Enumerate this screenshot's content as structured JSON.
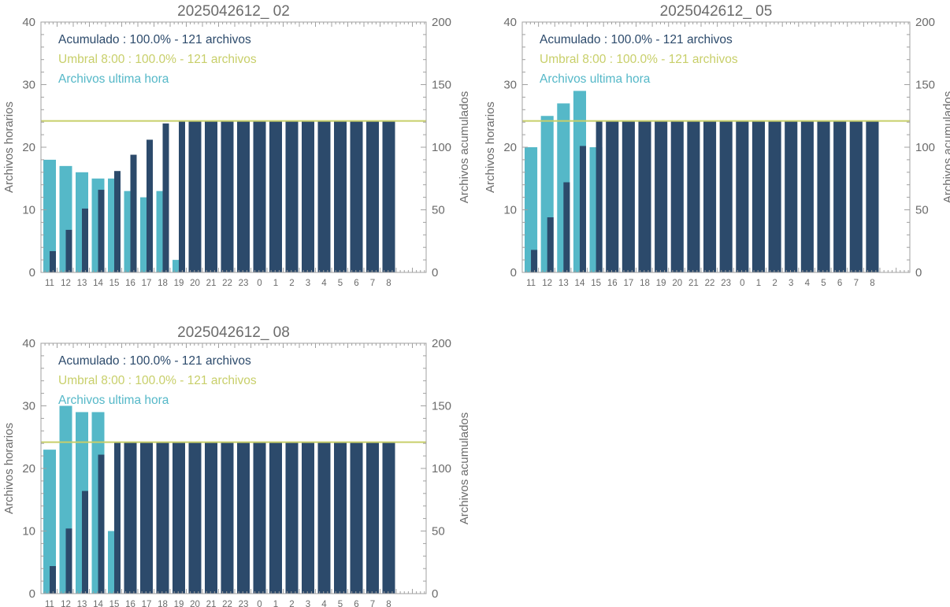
{
  "colors": {
    "hourly": "#55b8c8",
    "cumulative": "#2c4a6b",
    "threshold": "#c8cf6a",
    "axis": "#a0a0a0",
    "text": "#6b6b6b"
  },
  "chart_data": [
    {
      "type": "bar",
      "title": "2025042612_ 02",
      "ylabel_left": "Archivos horarios",
      "ylabel_right": "Archivos acumulados",
      "ylim_left": [
        0,
        40
      ],
      "ylim_right": [
        0,
        200
      ],
      "yticks_left": [
        "0",
        "10",
        "20",
        "30",
        "40"
      ],
      "yticks_right": [
        "0",
        "50",
        "100",
        "150",
        "200"
      ],
      "categories": [
        "11",
        "12",
        "13",
        "14",
        "15",
        "16",
        "17",
        "18",
        "19",
        "20",
        "21",
        "22",
        "23",
        "0",
        "1",
        "2",
        "3",
        "4",
        "5",
        "6",
        "7",
        "8"
      ],
      "threshold": 121,
      "legend": [
        "Acumulado : 100.0% - 121 archivos",
        "Umbral 8:00 : 100.0% - 121 archivos",
        "Archivos ultima hora"
      ],
      "series": [
        {
          "values": [
            18,
            17,
            16,
            15,
            15,
            13,
            12,
            13,
            2,
            0,
            0,
            0,
            0,
            0,
            0,
            0,
            0,
            0,
            0,
            0,
            0,
            0
          ]
        },
        {
          "values": [
            17,
            34,
            51,
            66,
            81,
            94,
            106,
            119,
            121,
            121,
            121,
            121,
            121,
            121,
            121,
            121,
            121,
            121,
            121,
            121,
            121,
            121
          ]
        }
      ]
    },
    {
      "type": "bar",
      "title": "2025042612_ 05",
      "ylabel_left": "Archivos horarios",
      "ylabel_right": "Archivos acumulados",
      "ylim_left": [
        0,
        40
      ],
      "ylim_right": [
        0,
        200
      ],
      "yticks_left": [
        "0",
        "10",
        "20",
        "30",
        "40"
      ],
      "yticks_right": [
        "0",
        "50",
        "100",
        "150",
        "200"
      ],
      "categories": [
        "11",
        "12",
        "13",
        "14",
        "15",
        "16",
        "17",
        "18",
        "19",
        "20",
        "21",
        "22",
        "23",
        "0",
        "1",
        "2",
        "3",
        "4",
        "5",
        "6",
        "7",
        "8"
      ],
      "threshold": 121,
      "legend": [
        "Acumulado : 100.0% - 121 archivos",
        "Umbral 8:00 : 100.0% - 121 archivos",
        "Archivos ultima hora"
      ],
      "series": [
        {
          "values": [
            20,
            25,
            27,
            29,
            20,
            0,
            0,
            0,
            0,
            0,
            0,
            0,
            0,
            0,
            0,
            0,
            0,
            0,
            0,
            0,
            0,
            0
          ]
        },
        {
          "values": [
            18,
            44,
            72,
            101,
            121,
            121,
            121,
            121,
            121,
            121,
            121,
            121,
            121,
            121,
            121,
            121,
            121,
            121,
            121,
            121,
            121,
            121
          ]
        }
      ]
    },
    {
      "type": "bar",
      "title": "2025042612_ 08",
      "ylabel_left": "Archivos horarios",
      "ylabel_right": "Archivos acumulados",
      "ylim_left": [
        0,
        40
      ],
      "ylim_right": [
        0,
        200
      ],
      "yticks_left": [
        "0",
        "10",
        "20",
        "30",
        "40"
      ],
      "yticks_right": [
        "0",
        "50",
        "100",
        "150",
        "200"
      ],
      "categories": [
        "11",
        "12",
        "13",
        "14",
        "15",
        "16",
        "17",
        "18",
        "19",
        "20",
        "21",
        "22",
        "23",
        "0",
        "1",
        "2",
        "3",
        "4",
        "5",
        "6",
        "7",
        "8"
      ],
      "threshold": 121,
      "legend": [
        "Acumulado : 100.0% - 121 archivos",
        "Umbral 8:00 : 100.0% - 121 archivos",
        "Archivos ultima hora"
      ],
      "series": [
        {
          "values": [
            23,
            30,
            29,
            29,
            10,
            0,
            0,
            0,
            0,
            0,
            0,
            0,
            0,
            0,
            0,
            0,
            0,
            0,
            0,
            0,
            0,
            0
          ]
        },
        {
          "values": [
            22,
            52,
            82,
            111,
            121,
            121,
            121,
            121,
            121,
            121,
            121,
            121,
            121,
            121,
            121,
            121,
            121,
            121,
            121,
            121,
            121,
            121
          ]
        }
      ]
    }
  ]
}
